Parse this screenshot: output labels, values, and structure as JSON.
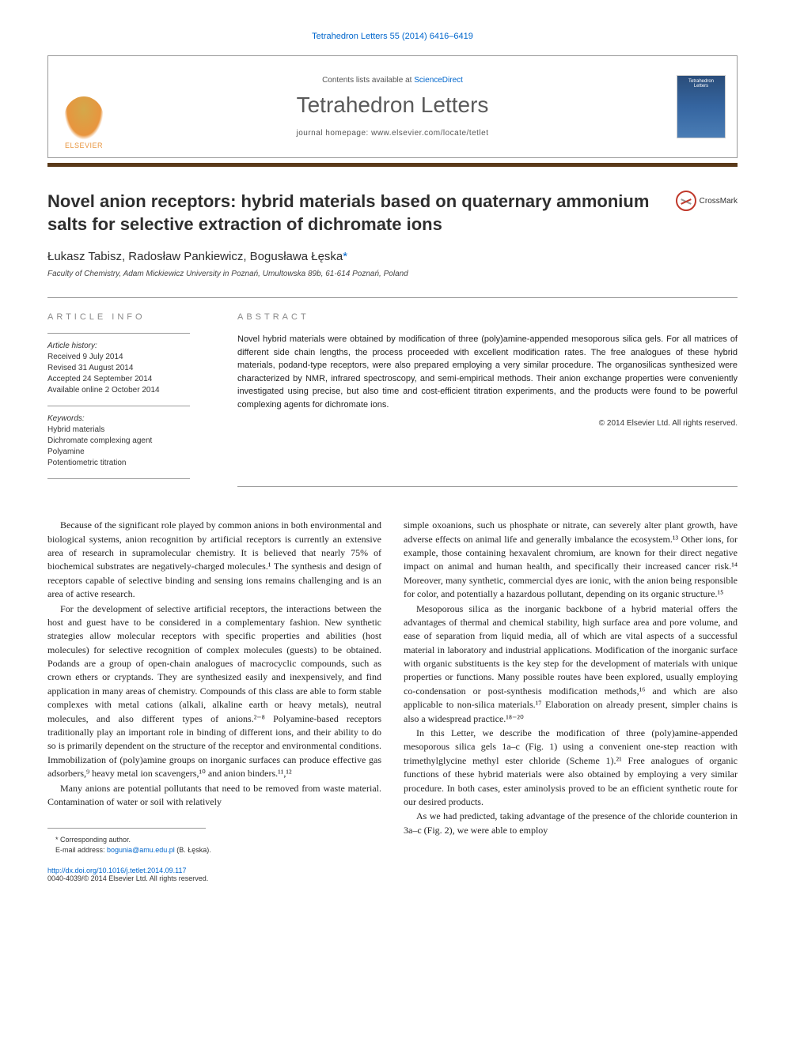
{
  "citation": "Tetrahedron Letters 55 (2014) 6416–6419",
  "header": {
    "contents_prefix": "Contents lists available at ",
    "contents_link": "ScienceDirect",
    "journal_name": "Tetrahedron Letters",
    "homepage_prefix": "journal homepage: ",
    "homepage_url": "www.elsevier.com/locate/tetlet",
    "publisher": "ELSEVIER",
    "cover_text_top": "Tetrahedron",
    "cover_text_bottom": "Letters"
  },
  "title": "Novel anion receptors: hybrid materials based on quaternary ammonium salts for selective extraction of dichromate ions",
  "crossmark_label": "CrossMark",
  "authors": "Łukasz Tabisz, Radosław Pankiewicz, Bogusława Łęska",
  "corresponding_marker": "*",
  "affiliation": "Faculty of Chemistry, Adam Mickiewicz University in Poznań, Umultowska 89b, 61-614 Poznań, Poland",
  "info": {
    "heading": "ARTICLE INFO",
    "history_label": "Article history:",
    "received": "Received 9 July 2014",
    "revised": "Revised 31 August 2014",
    "accepted": "Accepted 24 September 2014",
    "online": "Available online 2 October 2014",
    "keywords_label": "Keywords:",
    "kw1": "Hybrid materials",
    "kw2": "Dichromate complexing agent",
    "kw3": "Polyamine",
    "kw4": "Potentiometric titration"
  },
  "abstract": {
    "heading": "ABSTRACT",
    "text": "Novel hybrid materials were obtained by modification of three (poly)amine-appended mesoporous silica gels. For all matrices of different side chain lengths, the process proceeded with excellent modification rates. The free analogues of these hybrid materials, podand-type receptors, were also prepared employing a very similar procedure. The organosilicas synthesized were characterized by NMR, infrared spectroscopy, and semi-empirical methods. Their anion exchange properties were conveniently investigated using precise, but also time and cost-efficient titration experiments, and the products were found to be powerful complexing agents for dichromate ions.",
    "copy": "© 2014 Elsevier Ltd. All rights reserved."
  },
  "body": {
    "l_p1": "Because of the significant role played by common anions in both environmental and biological systems, anion recognition by artificial receptors is currently an extensive area of research in supramolecular chemistry. It is believed that nearly 75% of biochemical substrates are negatively-charged molecules.¹ The synthesis and design of receptors capable of selective binding and sensing ions remains challenging and is an area of active research.",
    "l_p2": "For the development of selective artificial receptors, the interactions between the host and guest have to be considered in a complementary fashion. New synthetic strategies allow molecular receptors with specific properties and abilities (host molecules) for selective recognition of complex molecules (guests) to be obtained. Podands are a group of open-chain analogues of macrocyclic compounds, such as crown ethers or cryptands. They are synthesized easily and inexpensively, and find application in many areas of chemistry. Compounds of this class are able to form stable complexes with metal cations (alkali, alkaline earth or heavy metals), neutral molecules, and also different types of anions.²⁻⁸ Polyamine-based receptors traditionally play an important role in binding of different ions, and their ability to do so is primarily dependent on the structure of the receptor and environmental conditions. Immobilization of (poly)amine groups on inorganic surfaces can produce effective gas adsorbers,⁹ heavy metal ion scavengers,¹⁰ and anion binders.¹¹,¹²",
    "l_p3": "Many anions are potential pollutants that need to be removed from waste material. Contamination of water or soil with relatively",
    "r_p1": "simple oxoanions, such us phosphate or nitrate, can severely alter plant growth, have adverse effects on animal life and generally imbalance the ecosystem.¹³ Other ions, for example, those containing hexavalent chromium, are known for their direct negative impact on animal and human health, and specifically their increased cancer risk.¹⁴ Moreover, many synthetic, commercial dyes are ionic, with the anion being responsible for color, and potentially a hazardous pollutant, depending on its organic structure.¹⁵",
    "r_p2": "Mesoporous silica as the inorganic backbone of a hybrid material offers the advantages of thermal and chemical stability, high surface area and pore volume, and ease of separation from liquid media, all of which are vital aspects of a successful material in laboratory and industrial applications. Modification of the inorganic surface with organic substituents is the key step for the development of materials with unique properties or functions. Many possible routes have been explored, usually employing co-condensation or post-synthesis modification methods,¹⁶ and which are also applicable to non-silica materials.¹⁷ Elaboration on already present, simpler chains is also a widespread practice.¹⁸⁻²⁰",
    "r_p3": "In this Letter, we describe the modification of three (poly)amine-appended mesoporous silica gels 1a–c (Fig. 1) using a convenient one-step reaction with trimethylglycine methyl ester chloride (Scheme 1).²¹ Free analogues of organic functions of these hybrid materials were also obtained by employing a very similar procedure. In both cases, ester aminolysis proved to be an efficient synthetic route for our desired products.",
    "r_p4": "As we had predicted, taking advantage of the presence of the chloride counterion in 3a–c (Fig. 2), we were able to employ"
  },
  "footer": {
    "corr_label": "* Corresponding author.",
    "email_label": "E-mail address: ",
    "email": "bogunia@amu.edu.pl",
    "email_name": " (B. Łęska).",
    "doi_url": "http://dx.doi.org/10.1016/j.tetlet.2014.09.117",
    "issn_copy": "0040-4039/© 2014 Elsevier Ltd. All rights reserved."
  },
  "colors": {
    "link": "#0066cc",
    "bar": "#5a3a1a",
    "elsevier": "#e8953e",
    "cover_bg": "#3565a0"
  }
}
